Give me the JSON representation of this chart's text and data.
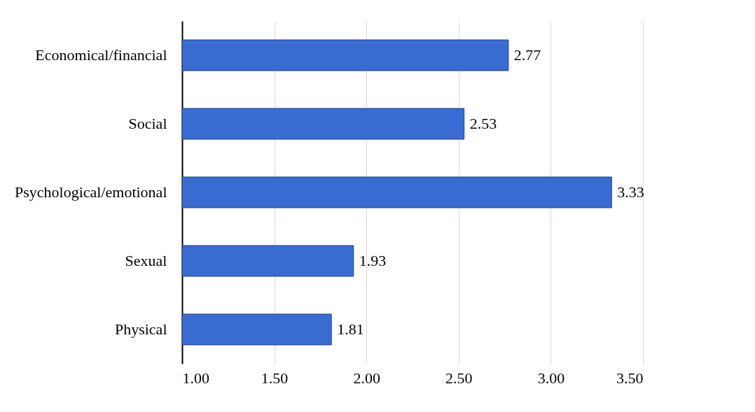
{
  "chart_data": {
    "type": "bar",
    "orientation": "horizontal",
    "categories": [
      "Economical/financial",
      "Social",
      "Psychological/emotional",
      "Sexual",
      "Physical"
    ],
    "values": [
      2.77,
      2.53,
      3.33,
      1.93,
      1.81
    ],
    "color": "#3a6bd0",
    "xlim": [
      1.0,
      3.5
    ],
    "xticks": [
      {
        "value": 1.0,
        "label": "1.00"
      },
      {
        "value": 1.5,
        "label": "1.50"
      },
      {
        "value": 2.0,
        "label": "2.00"
      },
      {
        "value": 2.5,
        "label": "2.50"
      },
      {
        "value": 3.0,
        "label": "3.00"
      },
      {
        "value": 3.5,
        "label": "3.50"
      }
    ],
    "grid": "x",
    "data_labels": true
  }
}
